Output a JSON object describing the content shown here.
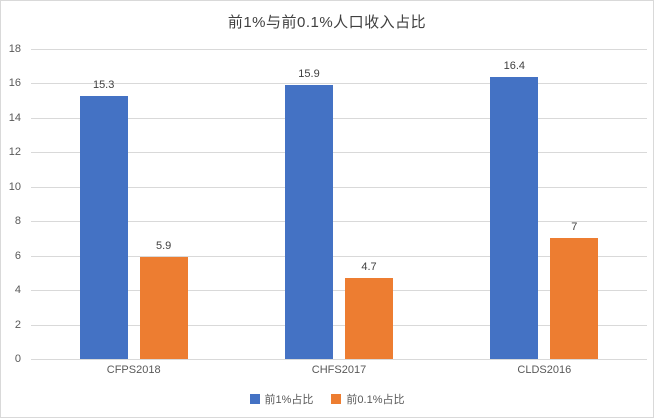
{
  "chart_data": {
    "type": "bar",
    "title": "前1%与前0.1%人口收入占比",
    "categories": [
      "CFPS2018",
      "CHFS2017",
      "CLDS2016"
    ],
    "series": [
      {
        "name": "前1%占比",
        "color": "#4472C4",
        "values": [
          15.3,
          15.9,
          16.4
        ]
      },
      {
        "name": "前0.1%占比",
        "color": "#ED7D31",
        "values": [
          5.9,
          4.7,
          7
        ]
      }
    ],
    "ylim": [
      0,
      18
    ],
    "ytick_step": 2,
    "yticks": [
      0,
      2,
      4,
      6,
      8,
      10,
      12,
      14,
      16,
      18
    ],
    "grid": true,
    "legend_position": "bottom",
    "data_labels": true,
    "colors": {
      "gridline": "#d9d9d9",
      "axis_text": "#595959",
      "title_text": "#404040",
      "background": "#ffffff"
    }
  }
}
